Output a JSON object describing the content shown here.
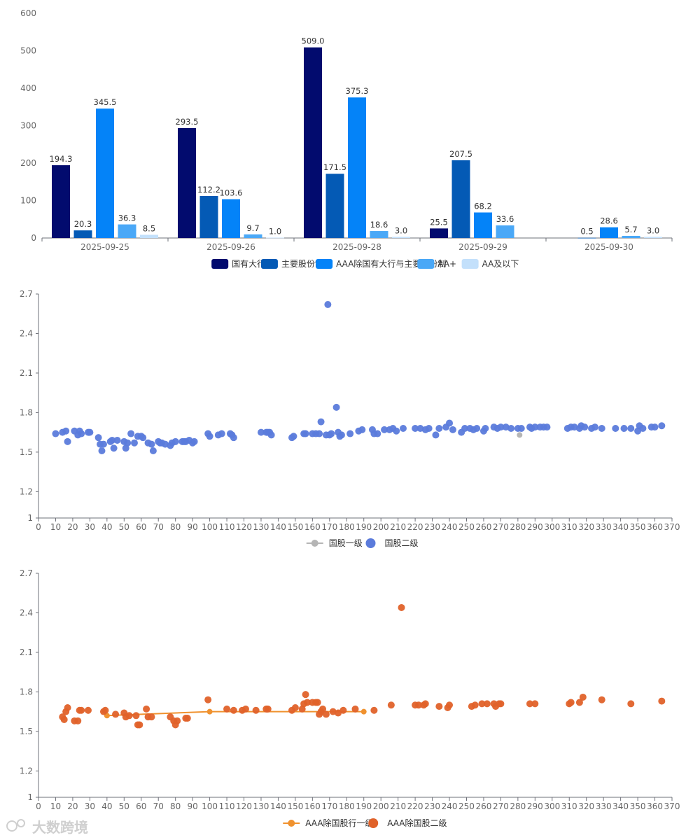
{
  "watermark": "大数跨境",
  "chart_data": [
    {
      "type": "bar",
      "categories": [
        "2025-09-25",
        "2025-09-26",
        "2025-09-28",
        "2025-09-29",
        "2025-09-30"
      ],
      "ylim": [
        0,
        600
      ],
      "yticks": [
        0,
        100,
        200,
        300,
        400,
        500,
        600
      ],
      "series": [
        {
          "name": "国有大行",
          "color": "#020b6e",
          "values": [
            194.3,
            293.5,
            509.0,
            25.5,
            null
          ],
          "labels": [
            "194.3",
            "293.5",
            "509.0",
            "25.5",
            null
          ]
        },
        {
          "name": "主要股份制",
          "color": "#045ab5",
          "values": [
            20.3,
            112.2,
            171.5,
            207.5,
            0.5
          ],
          "labels": [
            "20.3",
            "112.2",
            "171.5",
            "207.5",
            "0.5"
          ]
        },
        {
          "name": "AAA除国有大行与主要股份制",
          "color": "#0483f8",
          "values": [
            345.5,
            103.6,
            375.3,
            68.2,
            28.6
          ],
          "labels": [
            "345.5",
            "103.6",
            "375.3",
            "68.2",
            "28.6"
          ]
        },
        {
          "name": "AA+",
          "color": "#4aa8f7",
          "values": [
            36.3,
            9.7,
            18.6,
            33.6,
            5.7
          ],
          "labels": [
            "36.3",
            "9.7",
            "18.6",
            "33.6",
            "5.7"
          ]
        },
        {
          "name": "AA及以下",
          "color": "#c3e0fb",
          "values": [
            8.5,
            1.0,
            3.0,
            null,
            3.0
          ],
          "labels": [
            "8.5",
            "1.0",
            "3.0",
            null,
            "3.0"
          ]
        }
      ]
    },
    {
      "type": "scatter",
      "xlim": [
        0,
        370
      ],
      "ylim": [
        1,
        2.7
      ],
      "xticks": [
        0,
        10,
        20,
        30,
        40,
        50,
        60,
        70,
        80,
        90,
        100,
        110,
        120,
        130,
        140,
        150,
        160,
        170,
        180,
        190,
        200,
        210,
        220,
        230,
        240,
        250,
        260,
        270,
        280,
        290,
        300,
        310,
        320,
        330,
        340,
        350,
        360,
        370
      ],
      "yticks": [
        1,
        1.2,
        1.5,
        1.8,
        2.1,
        2.4,
        2.7
      ],
      "ytick_labels": [
        "1",
        "1.2",
        "1.5",
        "1.8",
        "2.1",
        "2.4",
        "2.7"
      ],
      "series": [
        {
          "name": "国股一级",
          "color": "#b5b5b5",
          "style": "line",
          "points": [
            [
              281,
              1.63
            ]
          ]
        },
        {
          "name": "国股二级",
          "color": "#5b7bdb",
          "style": "scatter",
          "points": [
            [
              10,
              1.64
            ],
            [
              14,
              1.65
            ],
            [
              16,
              1.66
            ],
            [
              17,
              1.58
            ],
            [
              21,
              1.66
            ],
            [
              23,
              1.63
            ],
            [
              24,
              1.66
            ],
            [
              25,
              1.64
            ],
            [
              29,
              1.65
            ],
            [
              30,
              1.65
            ],
            [
              35,
              1.61
            ],
            [
              36,
              1.56
            ],
            [
              37,
              1.51
            ],
            [
              38,
              1.56
            ],
            [
              42,
              1.58
            ],
            [
              43,
              1.59
            ],
            [
              44,
              1.53
            ],
            [
              46,
              1.59
            ],
            [
              50,
              1.58
            ],
            [
              51,
              1.53
            ],
            [
              52,
              1.57
            ],
            [
              54,
              1.64
            ],
            [
              56,
              1.57
            ],
            [
              58,
              1.62
            ],
            [
              60,
              1.62
            ],
            [
              61,
              1.61
            ],
            [
              64,
              1.57
            ],
            [
              66,
              1.56
            ],
            [
              67,
              1.51
            ],
            [
              70,
              1.58
            ],
            [
              71,
              1.57
            ],
            [
              72,
              1.57
            ],
            [
              74,
              1.56
            ],
            [
              77,
              1.55
            ],
            [
              78,
              1.57
            ],
            [
              80,
              1.58
            ],
            [
              84,
              1.58
            ],
            [
              85,
              1.58
            ],
            [
              86,
              1.58
            ],
            [
              88,
              1.59
            ],
            [
              90,
              1.57
            ],
            [
              91,
              1.58
            ],
            [
              99,
              1.64
            ],
            [
              100,
              1.62
            ],
            [
              105,
              1.63
            ],
            [
              107,
              1.64
            ],
            [
              112,
              1.64
            ],
            [
              113,
              1.63
            ],
            [
              114,
              1.61
            ],
            [
              130,
              1.65
            ],
            [
              133,
              1.65
            ],
            [
              134,
              1.65
            ],
            [
              135,
              1.65
            ],
            [
              136,
              1.63
            ],
            [
              148,
              1.61
            ],
            [
              149,
              1.62
            ],
            [
              155,
              1.64
            ],
            [
              156,
              1.64
            ],
            [
              160,
              1.64
            ],
            [
              162,
              1.64
            ],
            [
              164,
              1.64
            ],
            [
              165,
              1.73
            ],
            [
              168,
              1.63
            ],
            [
              169,
              2.62
            ],
            [
              170,
              1.63
            ],
            [
              171,
              1.64
            ],
            [
              174,
              1.84
            ],
            [
              175,
              1.65
            ],
            [
              176,
              1.62
            ],
            [
              177,
              1.63
            ],
            [
              182,
              1.64
            ],
            [
              187,
              1.66
            ],
            [
              189,
              1.67
            ],
            [
              195,
              1.67
            ],
            [
              196,
              1.64
            ],
            [
              198,
              1.64
            ],
            [
              202,
              1.67
            ],
            [
              205,
              1.67
            ],
            [
              207,
              1.68
            ],
            [
              209,
              1.66
            ],
            [
              213,
              1.68
            ],
            [
              220,
              1.68
            ],
            [
              223,
              1.68
            ],
            [
              226,
              1.67
            ],
            [
              228,
              1.68
            ],
            [
              232,
              1.63
            ],
            [
              234,
              1.68
            ],
            [
              238,
              1.69
            ],
            [
              240,
              1.72
            ],
            [
              242,
              1.67
            ],
            [
              247,
              1.65
            ],
            [
              249,
              1.68
            ],
            [
              252,
              1.68
            ],
            [
              254,
              1.67
            ],
            [
              256,
              1.68
            ],
            [
              260,
              1.66
            ],
            [
              261,
              1.68
            ],
            [
              266,
              1.69
            ],
            [
              268,
              1.68
            ],
            [
              270,
              1.69
            ],
            [
              273,
              1.69
            ],
            [
              276,
              1.68
            ],
            [
              280,
              1.68
            ],
            [
              282,
              1.68
            ],
            [
              287,
              1.69
            ],
            [
              288,
              1.68
            ],
            [
              290,
              1.69
            ],
            [
              293,
              1.69
            ],
            [
              295,
              1.69
            ],
            [
              297,
              1.69
            ],
            [
              309,
              1.68
            ],
            [
              311,
              1.69
            ],
            [
              313,
              1.69
            ],
            [
              316,
              1.68
            ],
            [
              317,
              1.7
            ],
            [
              319,
              1.69
            ],
            [
              323,
              1.68
            ],
            [
              325,
              1.69
            ],
            [
              329,
              1.68
            ],
            [
              337,
              1.68
            ],
            [
              342,
              1.68
            ],
            [
              346,
              1.68
            ],
            [
              350,
              1.66
            ],
            [
              351,
              1.7
            ],
            [
              353,
              1.68
            ],
            [
              358,
              1.69
            ],
            [
              360,
              1.69
            ],
            [
              364,
              1.7
            ]
          ]
        }
      ]
    },
    {
      "type": "scatter",
      "xlim": [
        0,
        370
      ],
      "ylim": [
        1,
        2.7
      ],
      "xticks": [
        0,
        10,
        20,
        30,
        40,
        50,
        60,
        70,
        80,
        90,
        100,
        110,
        120,
        130,
        140,
        150,
        160,
        170,
        180,
        190,
        200,
        210,
        220,
        230,
        240,
        250,
        260,
        270,
        280,
        290,
        300,
        310,
        320,
        330,
        340,
        350,
        360,
        370
      ],
      "yticks": [
        1,
        1.2,
        1.5,
        1.8,
        2.1,
        2.4,
        2.7
      ],
      "ytick_labels": [
        "1",
        "1.2",
        "1.5",
        "1.8",
        "2.1",
        "2.4",
        "2.7"
      ],
      "series": [
        {
          "name": "AAA除国股行一级",
          "color": "#f0922f",
          "style": "line",
          "points": [
            [
              40,
              1.62
            ],
            [
              100,
              1.65
            ],
            [
              190,
              1.65
            ]
          ]
        },
        {
          "name": "AAA除国股二级",
          "color": "#e0622a",
          "style": "scatter",
          "points": [
            [
              14,
              1.61
            ],
            [
              15,
              1.59
            ],
            [
              16,
              1.65
            ],
            [
              17,
              1.68
            ],
            [
              21,
              1.58
            ],
            [
              23,
              1.58
            ],
            [
              24,
              1.66
            ],
            [
              25,
              1.66
            ],
            [
              29,
              1.66
            ],
            [
              38,
              1.65
            ],
            [
              39,
              1.66
            ],
            [
              45,
              1.63
            ],
            [
              50,
              1.64
            ],
            [
              51,
              1.61
            ],
            [
              53,
              1.62
            ],
            [
              57,
              1.62
            ],
            [
              58,
              1.55
            ],
            [
              59,
              1.55
            ],
            [
              63,
              1.67
            ],
            [
              64,
              1.61
            ],
            [
              66,
              1.61
            ],
            [
              77,
              1.61
            ],
            [
              79,
              1.58
            ],
            [
              80,
              1.55
            ],
            [
              81,
              1.58
            ],
            [
              86,
              1.6
            ],
            [
              87,
              1.6
            ],
            [
              99,
              1.74
            ],
            [
              110,
              1.67
            ],
            [
              114,
              1.66
            ],
            [
              119,
              1.66
            ],
            [
              121,
              1.67
            ],
            [
              127,
              1.66
            ],
            [
              133,
              1.67
            ],
            [
              134,
              1.67
            ],
            [
              148,
              1.66
            ],
            [
              150,
              1.68
            ],
            [
              154,
              1.67
            ],
            [
              155,
              1.71
            ],
            [
              156,
              1.78
            ],
            [
              157,
              1.72
            ],
            [
              160,
              1.72
            ],
            [
              162,
              1.72
            ],
            [
              163,
              1.72
            ],
            [
              164,
              1.63
            ],
            [
              165,
              1.65
            ],
            [
              166,
              1.67
            ],
            [
              168,
              1.63
            ],
            [
              172,
              1.65
            ],
            [
              175,
              1.64
            ],
            [
              178,
              1.66
            ],
            [
              185,
              1.67
            ],
            [
              196,
              1.66
            ],
            [
              206,
              1.7
            ],
            [
              212,
              2.44
            ],
            [
              220,
              1.7
            ],
            [
              222,
              1.7
            ],
            [
              225,
              1.7
            ],
            [
              226,
              1.71
            ],
            [
              234,
              1.69
            ],
            [
              239,
              1.68
            ],
            [
              240,
              1.7
            ],
            [
              253,
              1.69
            ],
            [
              255,
              1.7
            ],
            [
              259,
              1.71
            ],
            [
              262,
              1.71
            ],
            [
              266,
              1.71
            ],
            [
              267,
              1.69
            ],
            [
              269,
              1.71
            ],
            [
              270,
              1.71
            ],
            [
              287,
              1.71
            ],
            [
              290,
              1.71
            ],
            [
              310,
              1.71
            ],
            [
              311,
              1.72
            ],
            [
              316,
              1.72
            ],
            [
              318,
              1.76
            ],
            [
              329,
              1.74
            ],
            [
              346,
              1.71
            ],
            [
              364,
              1.73
            ]
          ]
        }
      ]
    }
  ]
}
